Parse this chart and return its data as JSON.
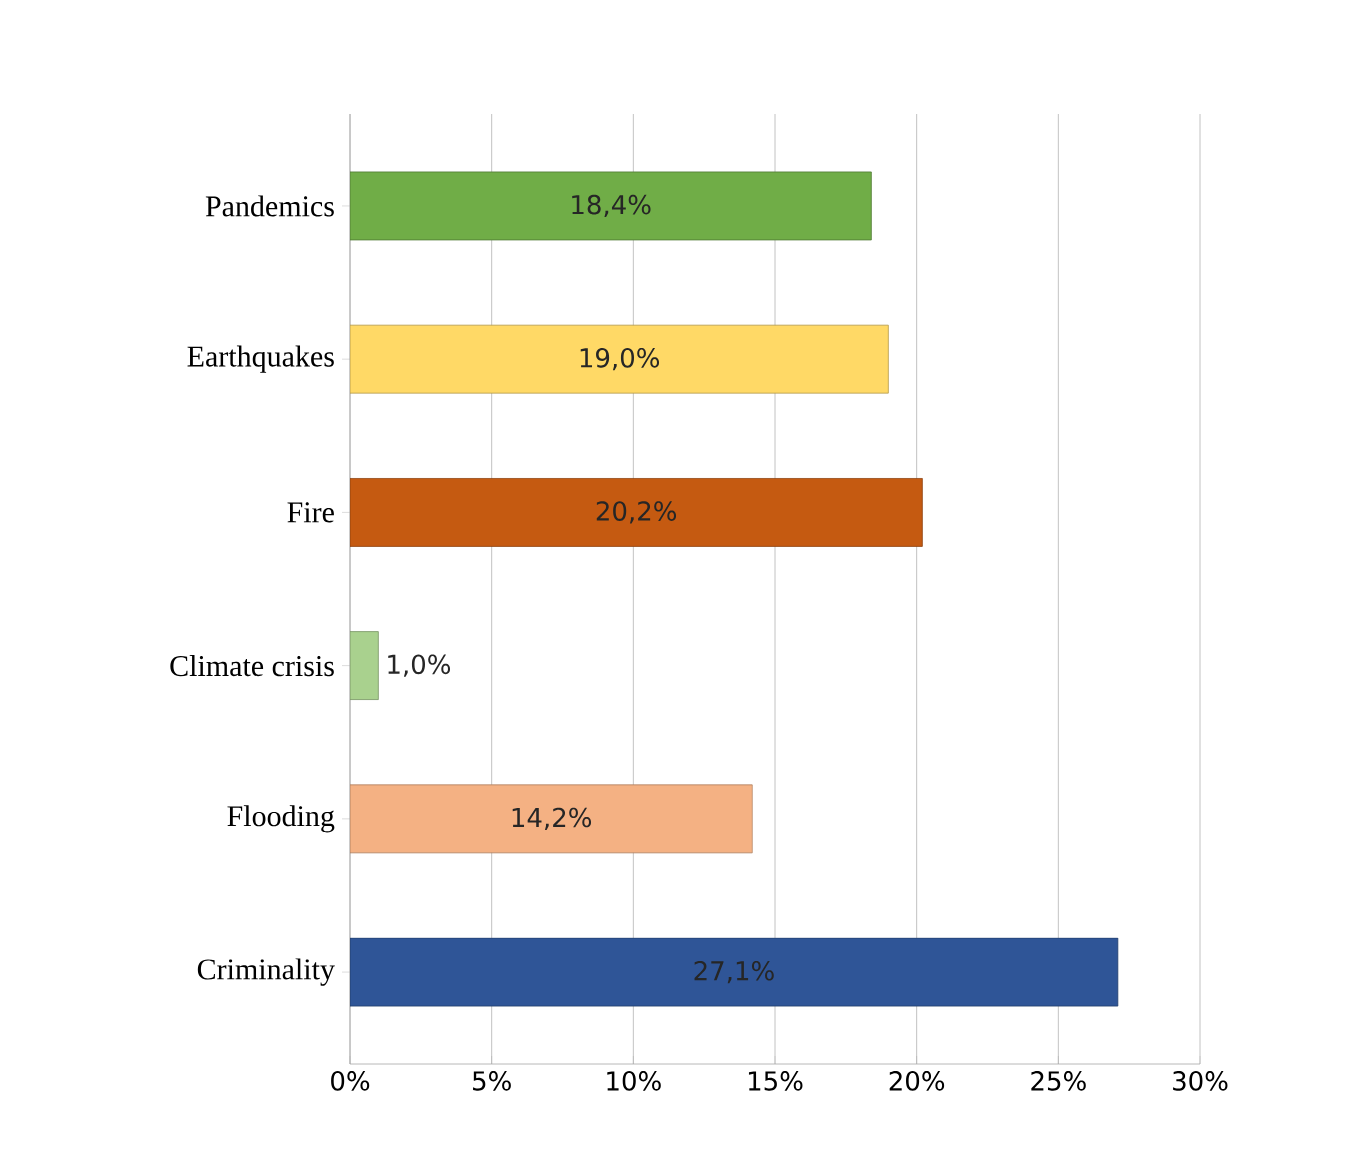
{
  "chart_data": {
    "type": "bar",
    "orientation": "horizontal",
    "categories": [
      "Pandemics",
      "Earthquakes",
      "Fire",
      "Climate crisis",
      "Flooding",
      "Criminality"
    ],
    "values": [
      18.4,
      19.0,
      20.2,
      1.0,
      14.2,
      27.1
    ],
    "colors": [
      "#70ad47",
      "#ffd966",
      "#c55a11",
      "#a9d18e",
      "#f4b183",
      "#2f5597"
    ],
    "value_labels": [
      "18,4%",
      "19,0%",
      "20,2%",
      "1,0%",
      "14,2%",
      "27,1%"
    ],
    "xlim": [
      0,
      30
    ],
    "xticks": [
      {
        "value": 0,
        "label": "0%"
      },
      {
        "value": 5,
        "label": "5%"
      },
      {
        "value": 10,
        "label": "10%"
      },
      {
        "value": 15,
        "label": "15%"
      },
      {
        "value": 20,
        "label": "20%"
      },
      {
        "value": 25,
        "label": "25%"
      },
      {
        "value": 30,
        "label": "30%"
      }
    ],
    "grid": "x"
  }
}
